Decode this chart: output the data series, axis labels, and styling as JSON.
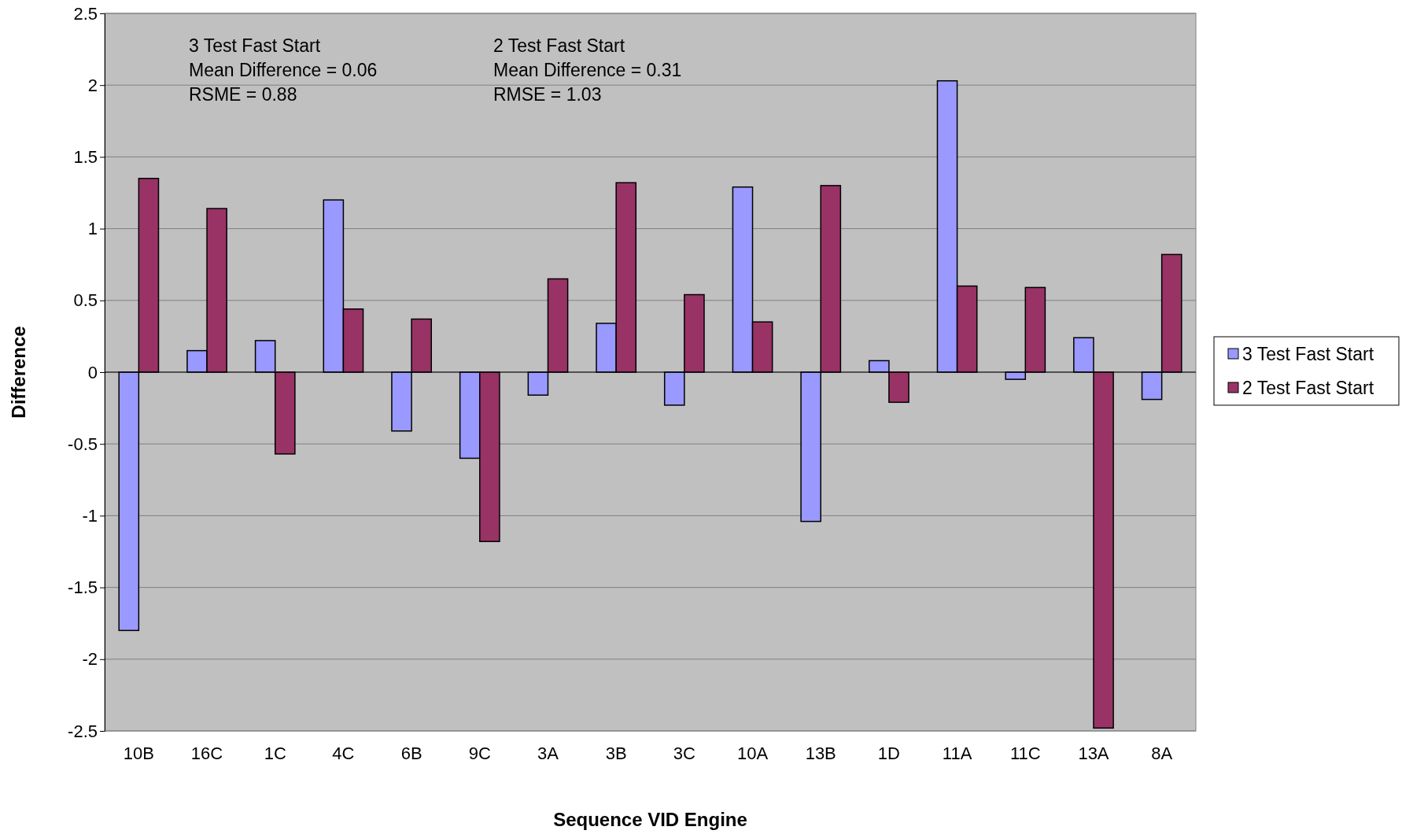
{
  "chart_data": {
    "type": "bar",
    "xlabel": "Sequence VID Engine",
    "ylabel": "Difference",
    "categories": [
      "10B",
      "16C",
      "1C",
      "4C",
      "6B",
      "9C",
      "3A",
      "3B",
      "3C",
      "10A",
      "13B",
      "1D",
      "11A",
      "11C",
      "13A",
      "8A"
    ],
    "series": [
      {
        "name": "3 Test Fast Start",
        "color": "#9999ff",
        "values": [
          -1.8,
          0.15,
          0.22,
          1.2,
          -0.41,
          -0.6,
          -0.16,
          0.34,
          -0.23,
          1.29,
          -1.04,
          0.08,
          2.03,
          -0.05,
          0.24,
          -0.19
        ]
      },
      {
        "name": "2 Test Fast Start",
        "color": "#993366",
        "values": [
          1.35,
          1.14,
          -0.57,
          0.44,
          0.37,
          -1.18,
          0.65,
          1.32,
          0.54,
          0.35,
          1.3,
          -0.21,
          0.6,
          0.59,
          -2.48,
          0.82
        ]
      }
    ],
    "ylim": [
      -2.5,
      2.5
    ],
    "yticks": [
      -2.5,
      -2,
      -1.5,
      -1,
      -0.5,
      0,
      0.5,
      1,
      1.5,
      2,
      2.5
    ],
    "grid": "y",
    "legend": "right",
    "annotations": [
      "3 Test Fast Start\nMean Difference = 0.06\nRSME = 0.88",
      "2 Test Fast Start\nMean Difference = 0.31\nRMSE = 1.03"
    ]
  }
}
